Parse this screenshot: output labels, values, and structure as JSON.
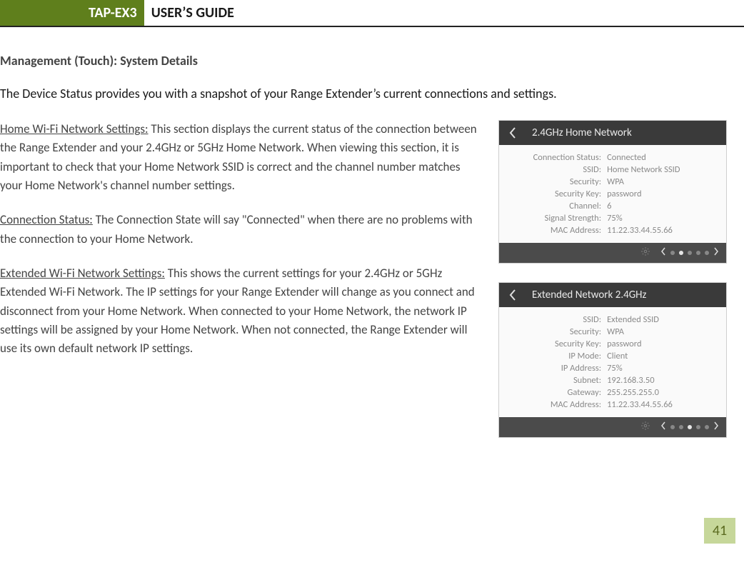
{
  "colors": {
    "olive": "#5f7f1c",
    "olive_light": "#c6d79a",
    "rule": "#222222",
    "body_text": "#444444",
    "panel_border": "#cfcfcf",
    "panel_bg": "#fafafa",
    "panel_head_bg": "#3a3a3a",
    "panel_head_text": "#e9e9e9",
    "panel_foot_bg": "#4b4b4b",
    "panel_value_text": "#8a8a8a",
    "dot_inactive": "#888888",
    "dot_active": "#e6e6e6"
  },
  "header": {
    "product": "TAP-EX3",
    "title": "USER’S GUIDE"
  },
  "section_title": "Management (Touch): System Details",
  "intro": "The Device Status provides you with a snapshot of your Range Extender’s current connections and settings.",
  "paragraphs": {
    "p1_label": "Home Wi-Fi Network Settings:",
    "p1_text": " This section displays the current status of the connection between the Range Extender and your 2.4GHz or 5GHz Home Network. When viewing this section, it is important to check that your Home Network SSID is correct and the channel number matches your Home Network's channel number settings.",
    "p2_label": "Connection Status:",
    "p2_text": " The Connection State will say \"Connected\" when there are no problems with the connection to your Home Network.",
    "p3_label": "Extended Wi-Fi Network Settings:",
    "p3_text": " This shows the current settings for your 2.4GHz or 5GHz Extended Wi-Fi Network. The IP settings for your Range Extender will change as you connect and disconnect from your Home Network. When connected to your Home Network, the network IP settings will be assigned by your Home Network. When not connected, the Range Extender will use its own default network IP settings."
  },
  "panel1": {
    "title": "2.4GHz Home Network",
    "total_dots": 5,
    "active_dot_index": 1,
    "rows": [
      {
        "k": "Connection Status:",
        "v": "Connected"
      },
      {
        "k": "SSID:",
        "v": "Home Network SSID"
      },
      {
        "k": "Security:",
        "v": "WPA"
      },
      {
        "k": "Security Key:",
        "v": "password"
      },
      {
        "k": "Channel:",
        "v": "6"
      },
      {
        "k": "Signal Strength:",
        "v": "75%"
      },
      {
        "k": "MAC Address:",
        "v": "11.22.33.44.55.66"
      }
    ]
  },
  "panel2": {
    "title": "Extended Network 2.4GHz",
    "total_dots": 5,
    "active_dot_index": 2,
    "rows": [
      {
        "k": "SSID:",
        "v": "Extended SSID"
      },
      {
        "k": "Security:",
        "v": "WPA"
      },
      {
        "k": "Security Key:",
        "v": "password"
      },
      {
        "k": "IP Mode:",
        "v": "Client"
      },
      {
        "k": "IP Address:",
        "v": "75%"
      },
      {
        "k": "Subnet:",
        "v": "192.168.3.50"
      },
      {
        "k": "Gateway:",
        "v": "255.255.255.0"
      },
      {
        "k": "MAC Address:",
        "v": "11.22.33.44.55.66"
      }
    ]
  },
  "page_number": "41"
}
